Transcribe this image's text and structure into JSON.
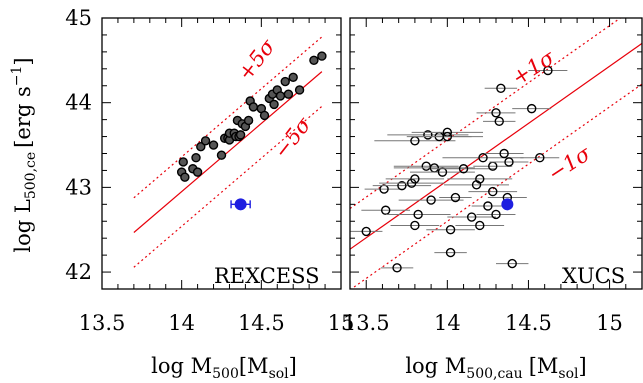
{
  "chart_data": [
    {
      "panel": "left",
      "type": "scatter",
      "name": "REXCESS",
      "ylabel_main": "log L",
      "ylabel_sub": "500,ce",
      "ylabel_unit": "[erg s",
      "ylabel_sup": "−1",
      "ylabel_close": "]",
      "xlabel_main": "log M",
      "xlabel_sub": "500",
      "xlabel_unit": "[M",
      "xlabel_unit_sub": "sol",
      "xlabel_close": "]",
      "xlim": [
        13.5,
        15.0
      ],
      "ylim": [
        41.8,
        45.0
      ],
      "x_ticks": [
        13.5,
        14.0,
        14.5,
        15.0
      ],
      "x_tick_labels": [
        "13.5",
        "14",
        "14.5",
        "15"
      ],
      "y_ticks": [
        42,
        43,
        44,
        45
      ],
      "y_tick_labels": [
        "42",
        "43",
        "44",
        "45"
      ],
      "relation": {
        "slope": 1.61,
        "intercept_at_14": 42.95,
        "x_range": [
          13.7,
          14.88
        ],
        "scatter_offset": 0.41
      },
      "sigma_labels": {
        "plus": "+5σ",
        "minus": "−5σ"
      },
      "points": [
        {
          "x": 14.0,
          "y": 43.18
        },
        {
          "x": 14.01,
          "y": 43.3
        },
        {
          "x": 14.02,
          "y": 43.12
        },
        {
          "x": 14.07,
          "y": 43.22
        },
        {
          "x": 14.09,
          "y": 43.35
        },
        {
          "x": 14.1,
          "y": 43.18
        },
        {
          "x": 14.12,
          "y": 43.48
        },
        {
          "x": 14.15,
          "y": 43.55
        },
        {
          "x": 14.2,
          "y": 43.5
        },
        {
          "x": 14.25,
          "y": 43.38
        },
        {
          "x": 14.27,
          "y": 43.58
        },
        {
          "x": 14.29,
          "y": 43.58
        },
        {
          "x": 14.3,
          "y": 43.56
        },
        {
          "x": 14.3,
          "y": 43.64
        },
        {
          "x": 14.33,
          "y": 43.64
        },
        {
          "x": 14.34,
          "y": 43.6
        },
        {
          "x": 14.35,
          "y": 43.79
        },
        {
          "x": 14.36,
          "y": 43.6
        },
        {
          "x": 14.37,
          "y": 43.62
        },
        {
          "x": 14.38,
          "y": 43.75
        },
        {
          "x": 14.4,
          "y": 43.72
        },
        {
          "x": 14.42,
          "y": 43.79
        },
        {
          "x": 14.43,
          "y": 44.02
        },
        {
          "x": 14.45,
          "y": 43.95
        },
        {
          "x": 14.5,
          "y": 43.93
        },
        {
          "x": 14.52,
          "y": 43.85
        },
        {
          "x": 14.55,
          "y": 44.05
        },
        {
          "x": 14.57,
          "y": 44.1
        },
        {
          "x": 14.58,
          "y": 43.98
        },
        {
          "x": 14.6,
          "y": 44.15
        },
        {
          "x": 14.62,
          "y": 44.08
        },
        {
          "x": 14.65,
          "y": 44.25
        },
        {
          "x": 14.67,
          "y": 44.1
        },
        {
          "x": 14.7,
          "y": 44.3
        },
        {
          "x": 14.74,
          "y": 44.15
        },
        {
          "x": 14.83,
          "y": 44.5
        },
        {
          "x": 14.88,
          "y": 44.55
        }
      ],
      "highlight": {
        "x": 14.37,
        "y": 42.8,
        "xerr": 0.06,
        "color": "#1f1fe0"
      }
    },
    {
      "panel": "right",
      "type": "scatter",
      "name": "XUCS",
      "xlabel_main": "log M",
      "xlabel_sub": "500,cau",
      "xlabel_unit": "[M",
      "xlabel_unit_sub": "sol",
      "xlabel_close": "]",
      "xlim": [
        13.4,
        15.2
      ],
      "ylim": [
        41.8,
        45.0
      ],
      "x_ticks": [
        13.5,
        14.0,
        14.5,
        15.0
      ],
      "x_tick_labels": [
        "13.5",
        "14",
        "14.5",
        "15"
      ],
      "y_ticks": [
        42,
        43,
        44,
        45
      ],
      "relation": {
        "slope": 1.35,
        "intercept_at_14": 43.08,
        "x_range": [
          13.4,
          15.2
        ],
        "scatter_offset": 0.48
      },
      "sigma_labels": {
        "plus": "+1σ",
        "minus": "−1σ"
      },
      "points": [
        {
          "x": 13.5,
          "y": 42.48,
          "xerr": 0.1
        },
        {
          "x": 13.61,
          "y": 42.98,
          "xerr": 0.12
        },
        {
          "x": 13.62,
          "y": 42.73,
          "xerr": 0.15
        },
        {
          "x": 13.69,
          "y": 42.05,
          "xerr": 0.1
        },
        {
          "x": 13.72,
          "y": 43.02,
          "xerr": 0.18
        },
        {
          "x": 13.78,
          "y": 43.05,
          "xerr": 0.2
        },
        {
          "x": 13.8,
          "y": 43.55,
          "xerr": 0.25
        },
        {
          "x": 13.8,
          "y": 43.1,
          "xerr": 0.18
        },
        {
          "x": 13.8,
          "y": 42.55,
          "xerr": 0.15
        },
        {
          "x": 13.82,
          "y": 42.68,
          "xerr": 0.2
        },
        {
          "x": 13.87,
          "y": 43.25,
          "xerr": 0.2
        },
        {
          "x": 13.88,
          "y": 43.62,
          "xerr": 0.25
        },
        {
          "x": 13.9,
          "y": 42.85,
          "xerr": 0.2
        },
        {
          "x": 13.92,
          "y": 43.23,
          "xerr": 0.25
        },
        {
          "x": 13.95,
          "y": 43.6,
          "xerr": 0.2
        },
        {
          "x": 13.97,
          "y": 43.18,
          "xerr": 0.2
        },
        {
          "x": 14.0,
          "y": 43.65,
          "xerr": 0.22
        },
        {
          "x": 14.0,
          "y": 43.6,
          "xerr": 0.22
        },
        {
          "x": 14.02,
          "y": 42.5,
          "xerr": 0.15
        },
        {
          "x": 14.02,
          "y": 42.23,
          "xerr": 0.1
        },
        {
          "x": 14.05,
          "y": 42.88,
          "xerr": 0.1
        },
        {
          "x": 14.1,
          "y": 43.22,
          "xerr": 0.2
        },
        {
          "x": 14.15,
          "y": 42.65,
          "xerr": 0.15
        },
        {
          "x": 14.18,
          "y": 43.03,
          "xerr": 0.2
        },
        {
          "x": 14.2,
          "y": 42.55,
          "xerr": 0.15
        },
        {
          "x": 14.2,
          "y": 43.1,
          "xerr": 0.2
        },
        {
          "x": 14.22,
          "y": 43.35,
          "xerr": 0.25
        },
        {
          "x": 14.25,
          "y": 42.78,
          "xerr": 0.1
        },
        {
          "x": 14.28,
          "y": 42.95,
          "xerr": 0.15
        },
        {
          "x": 14.28,
          "y": 43.25,
          "xerr": 0.12
        },
        {
          "x": 14.3,
          "y": 43.88,
          "xerr": 0.12
        },
        {
          "x": 14.3,
          "y": 42.68,
          "xerr": 0.12
        },
        {
          "x": 14.32,
          "y": 43.78,
          "xerr": 0.1
        },
        {
          "x": 14.33,
          "y": 44.17,
          "xerr": 0.1
        },
        {
          "x": 14.35,
          "y": 43.4,
          "xerr": 0.12
        },
        {
          "x": 14.37,
          "y": 42.88,
          "xerr": 0.12
        },
        {
          "x": 14.38,
          "y": 43.3,
          "xerr": 0.12
        },
        {
          "x": 14.4,
          "y": 42.1,
          "xerr": 0.1
        },
        {
          "x": 14.52,
          "y": 43.93,
          "xerr": 0.12
        },
        {
          "x": 14.57,
          "y": 43.35,
          "xerr": 0.12
        },
        {
          "x": 14.62,
          "y": 44.38,
          "xerr": 0.12
        }
      ],
      "highlight": {
        "x": 14.37,
        "y": 42.8,
        "color": "#1f1fe0"
      }
    }
  ]
}
